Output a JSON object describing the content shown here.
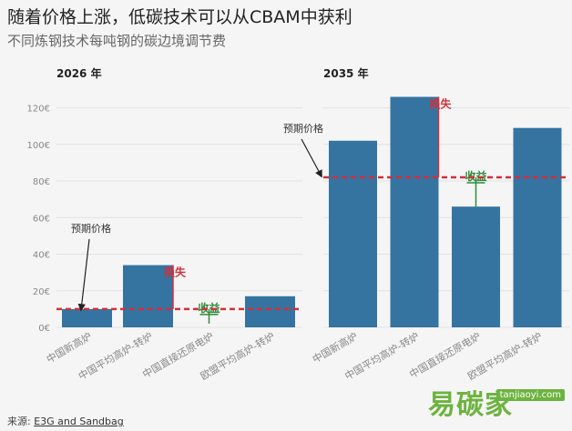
{
  "title": "随着价格上涨，低碳技术可以从CBAM中获利",
  "subtitle": "不同炼钢技术每吨钢的碳边境调节费",
  "source": {
    "prefix": "来源: ",
    "link": "E3G and Sandbag"
  },
  "watermark": {
    "text_zh": "易碳家",
    "text_en": "tanjiaoyi.com"
  },
  "colors": {
    "bar": "#3574a1",
    "price_line": "#d32f3a",
    "loss": "#d32f3a",
    "gain": "#2e8b3a",
    "grid": "#e2e2e2",
    "axis_text": "#888"
  },
  "chart_data": [
    {
      "type": "bar",
      "title": "2026 年",
      "categories": [
        "中国新高炉",
        "中国平均高炉-转炉",
        "中国直接还原电炉",
        "欧盟平均高炉-转炉"
      ],
      "values": [
        10,
        34,
        0,
        17
      ],
      "reference_line": {
        "label": "预期价格",
        "value": 10
      },
      "annotations": [
        {
          "label": "损失",
          "category": 1,
          "kind": "loss"
        },
        {
          "label": "收益",
          "category": 2,
          "kind": "gain",
          "bottom": 2
        }
      ],
      "ylim": [
        0,
        130
      ],
      "yticks": [
        0,
        20,
        40,
        60,
        80,
        100,
        120
      ],
      "ytick_labels": [
        "0€",
        "20€",
        "40€",
        "60€",
        "80€",
        "100€",
        "120€"
      ]
    },
    {
      "type": "bar",
      "title": "2035 年",
      "categories": [
        "中国新高炉",
        "中国平均高炉-转炉",
        "中国直接还原电炉",
        "欧盟平均高炉-转炉"
      ],
      "values": [
        102,
        126,
        66,
        109
      ],
      "reference_line": {
        "label": "预期价格",
        "value": 82
      },
      "annotations": [
        {
          "label": "损失",
          "category": 1,
          "kind": "loss"
        },
        {
          "label": "收益",
          "category": 2,
          "kind": "gain"
        }
      ],
      "ylim": [
        0,
        130
      ]
    }
  ]
}
